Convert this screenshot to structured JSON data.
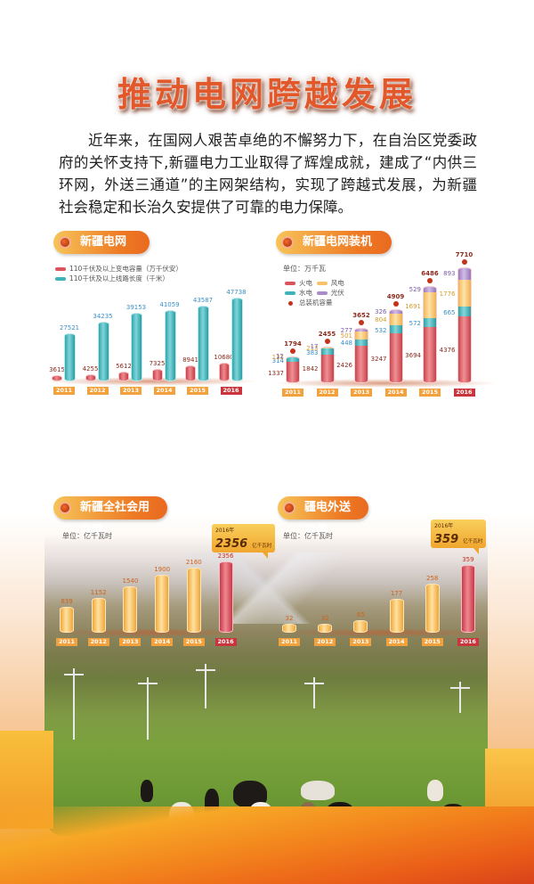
{
  "poster": {
    "title": "推动电网跨越发展",
    "intro": "近年来，在国网人艰苦卓绝的不懈努力下，在自治区党委政府的关怀支持下,新疆电力工业取得了辉煌成就，建成了“内供三环网，外送三通道”的主网架结构，实现了跨越式发展，为新疆社会稳定和长治久安提供了可靠的电力保障。"
  },
  "colors": {
    "accent_orange": "#ee7a24",
    "title_red": "#e2582a",
    "thermal_red": "#d9545c",
    "hydro_teal": "#3fb3b9",
    "wind_yellow": "#f6c36a",
    "solar_purple": "#a98bcb",
    "highlight_year": "#c9353c",
    "year_tag": "#f2a13c"
  },
  "chart_data": [
    {
      "type": "bar",
      "title": "新疆电网规模",
      "categories": [
        "2011",
        "2012",
        "2013",
        "2014",
        "2015",
        "2016"
      ],
      "series": [
        {
          "name": "110千伏及以上变电容量（万千伏安）",
          "color": "#d9545c",
          "values": [
            3615,
            4255,
            5612,
            7325,
            8941,
            10680
          ]
        },
        {
          "name": "110千伏及以上线路长度（千米）",
          "color": "#3fb3b9",
          "values": [
            27521,
            34235,
            39153,
            41059,
            43587,
            47738
          ]
        }
      ],
      "legend_position": "top-left",
      "grid": false,
      "ylim": [
        0,
        50000
      ]
    },
    {
      "type": "bar",
      "stacked": true,
      "title": "新疆电网装机容量",
      "unit": "单位：万千瓦",
      "categories": [
        "2011",
        "2012",
        "2013",
        "2014",
        "2015",
        "2016"
      ],
      "series": [
        {
          "name": "火电",
          "color": "#d9545c",
          "values": [
            1337,
            1842,
            2426,
            3247,
            3694,
            4376
          ]
        },
        {
          "name": "水电",
          "color": "#3fb3b9",
          "values": [
            314,
            383,
            448,
            532,
            572,
            665
          ]
        },
        {
          "name": "风电",
          "color": "#f6c36a",
          "values": [
            131,
            213,
            501,
            804,
            1691,
            1776
          ]
        },
        {
          "name": "光伏",
          "color": "#a98bcb",
          "values": [
            12,
            17,
            277,
            326,
            529,
            893
          ]
        }
      ],
      "totals": {
        "name": "总装机容量",
        "values": [
          1794,
          2455,
          3652,
          4909,
          6486,
          7710
        ]
      },
      "legend_position": "top-left",
      "grid": false,
      "ylim": [
        0,
        8000
      ]
    },
    {
      "type": "bar",
      "title": "新疆全社会用电量",
      "unit": "单位：亿千瓦时",
      "categories": [
        "2011",
        "2012",
        "2013",
        "2014",
        "2015",
        "2016"
      ],
      "values": [
        839,
        1152,
        1540,
        1900,
        2160,
        2356
      ],
      "annotation": {
        "year": "2016年",
        "value": "2356",
        "unit": "亿千瓦时"
      },
      "grid": false,
      "ylim": [
        0,
        2500
      ]
    },
    {
      "type": "bar",
      "title": "疆电外送电量",
      "unit": "单位：亿千瓦时",
      "categories": [
        "2011",
        "2012",
        "2013",
        "2014",
        "2015",
        "2016"
      ],
      "values": [
        32,
        32,
        65,
        177,
        258,
        359
      ],
      "annotation": {
        "year": "2016年",
        "value": "359",
        "unit": "亿千瓦时"
      },
      "grid": false,
      "ylim": [
        0,
        400
      ]
    }
  ],
  "labels": {
    "c1_title": "新疆电网规模",
    "c1_leg1": "110千伏及以上变电容量（万千伏安）",
    "c1_leg2": "110千伏及以上线路长度（千米）",
    "c2_title": "新疆电网装机容量",
    "c2_unit": "单位：万千瓦",
    "c2_leg_thermal": "火电",
    "c2_leg_wind": "风电",
    "c2_leg_hydro": "水电",
    "c2_leg_solar": "光伏",
    "c2_leg_total": "总装机容量",
    "c3_title": "新疆全社会用电量",
    "c3_unit": "单位：亿千瓦时",
    "c3_callout_year": "2016年",
    "c3_callout_value": "2356",
    "c3_callout_unit": "亿千瓦时",
    "c4_title": "疆电外送电量",
    "c4_unit": "单位：亿千瓦时",
    "c4_callout_year": "2016年",
    "c4_callout_value": "359",
    "c4_callout_unit": "亿千瓦时"
  }
}
